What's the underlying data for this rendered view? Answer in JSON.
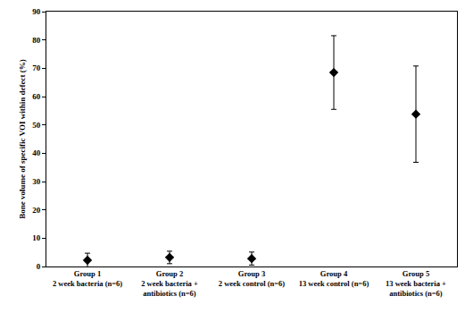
{
  "chart_data": {
    "type": "scatter",
    "y_label": "Bone volume of specific VOI within defect (%)",
    "categories": [
      "Group 1\n2 week bacteria (n=6)",
      "Group 2\n2 week bacteria +\nantibiotics (n=6)",
      "Group 3\n2 week control (n=6)",
      "Group 4\n13 week control (n=6)",
      "Group 5\n13 week bacteria +\nantibiotics (n=6)"
    ],
    "values": [
      2.2,
      3.2,
      2.8,
      68.5,
      53.8
    ],
    "error": [
      2.5,
      2.2,
      2.3,
      13,
      17
    ],
    "color": "#000000",
    "marker": "diamond",
    "ylim": [
      0,
      90
    ],
    "yticks": [
      0,
      10,
      20,
      30,
      40,
      50,
      60,
      70,
      80,
      90
    ],
    "grid": false
  }
}
